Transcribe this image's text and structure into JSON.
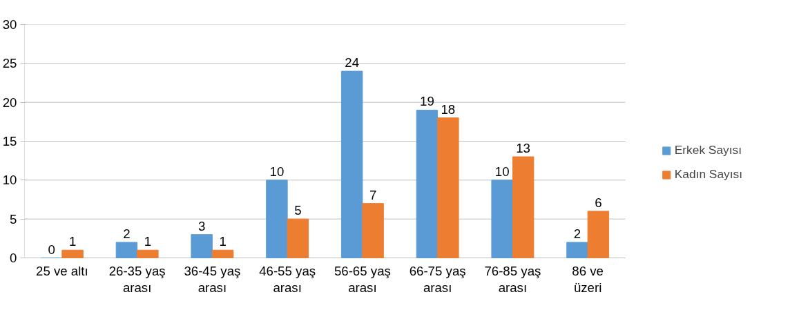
{
  "chart_data": {
    "type": "bar",
    "categories": [
      "25 ve altı",
      "26-35 yaş arası",
      "36-45 yaş arası",
      "46-55 yaş arası",
      "56-65 yaş arası",
      "66-75 yaş arası",
      "76-85 yaş arası",
      "86 ve üzeri"
    ],
    "series": [
      {
        "name": "Erkek Sayısı",
        "color": "#5b9bd5",
        "values": [
          0,
          2,
          3,
          10,
          24,
          19,
          10,
          2
        ]
      },
      {
        "name": "Kadın Sayısı",
        "color": "#ed7d31",
        "values": [
          1,
          1,
          1,
          5,
          7,
          18,
          13,
          6
        ]
      }
    ],
    "ylim": [
      0,
      30
    ],
    "yticks": [
      0,
      5,
      10,
      15,
      20,
      25,
      30
    ],
    "grid": "y",
    "legend": "right",
    "data_labels": true
  }
}
